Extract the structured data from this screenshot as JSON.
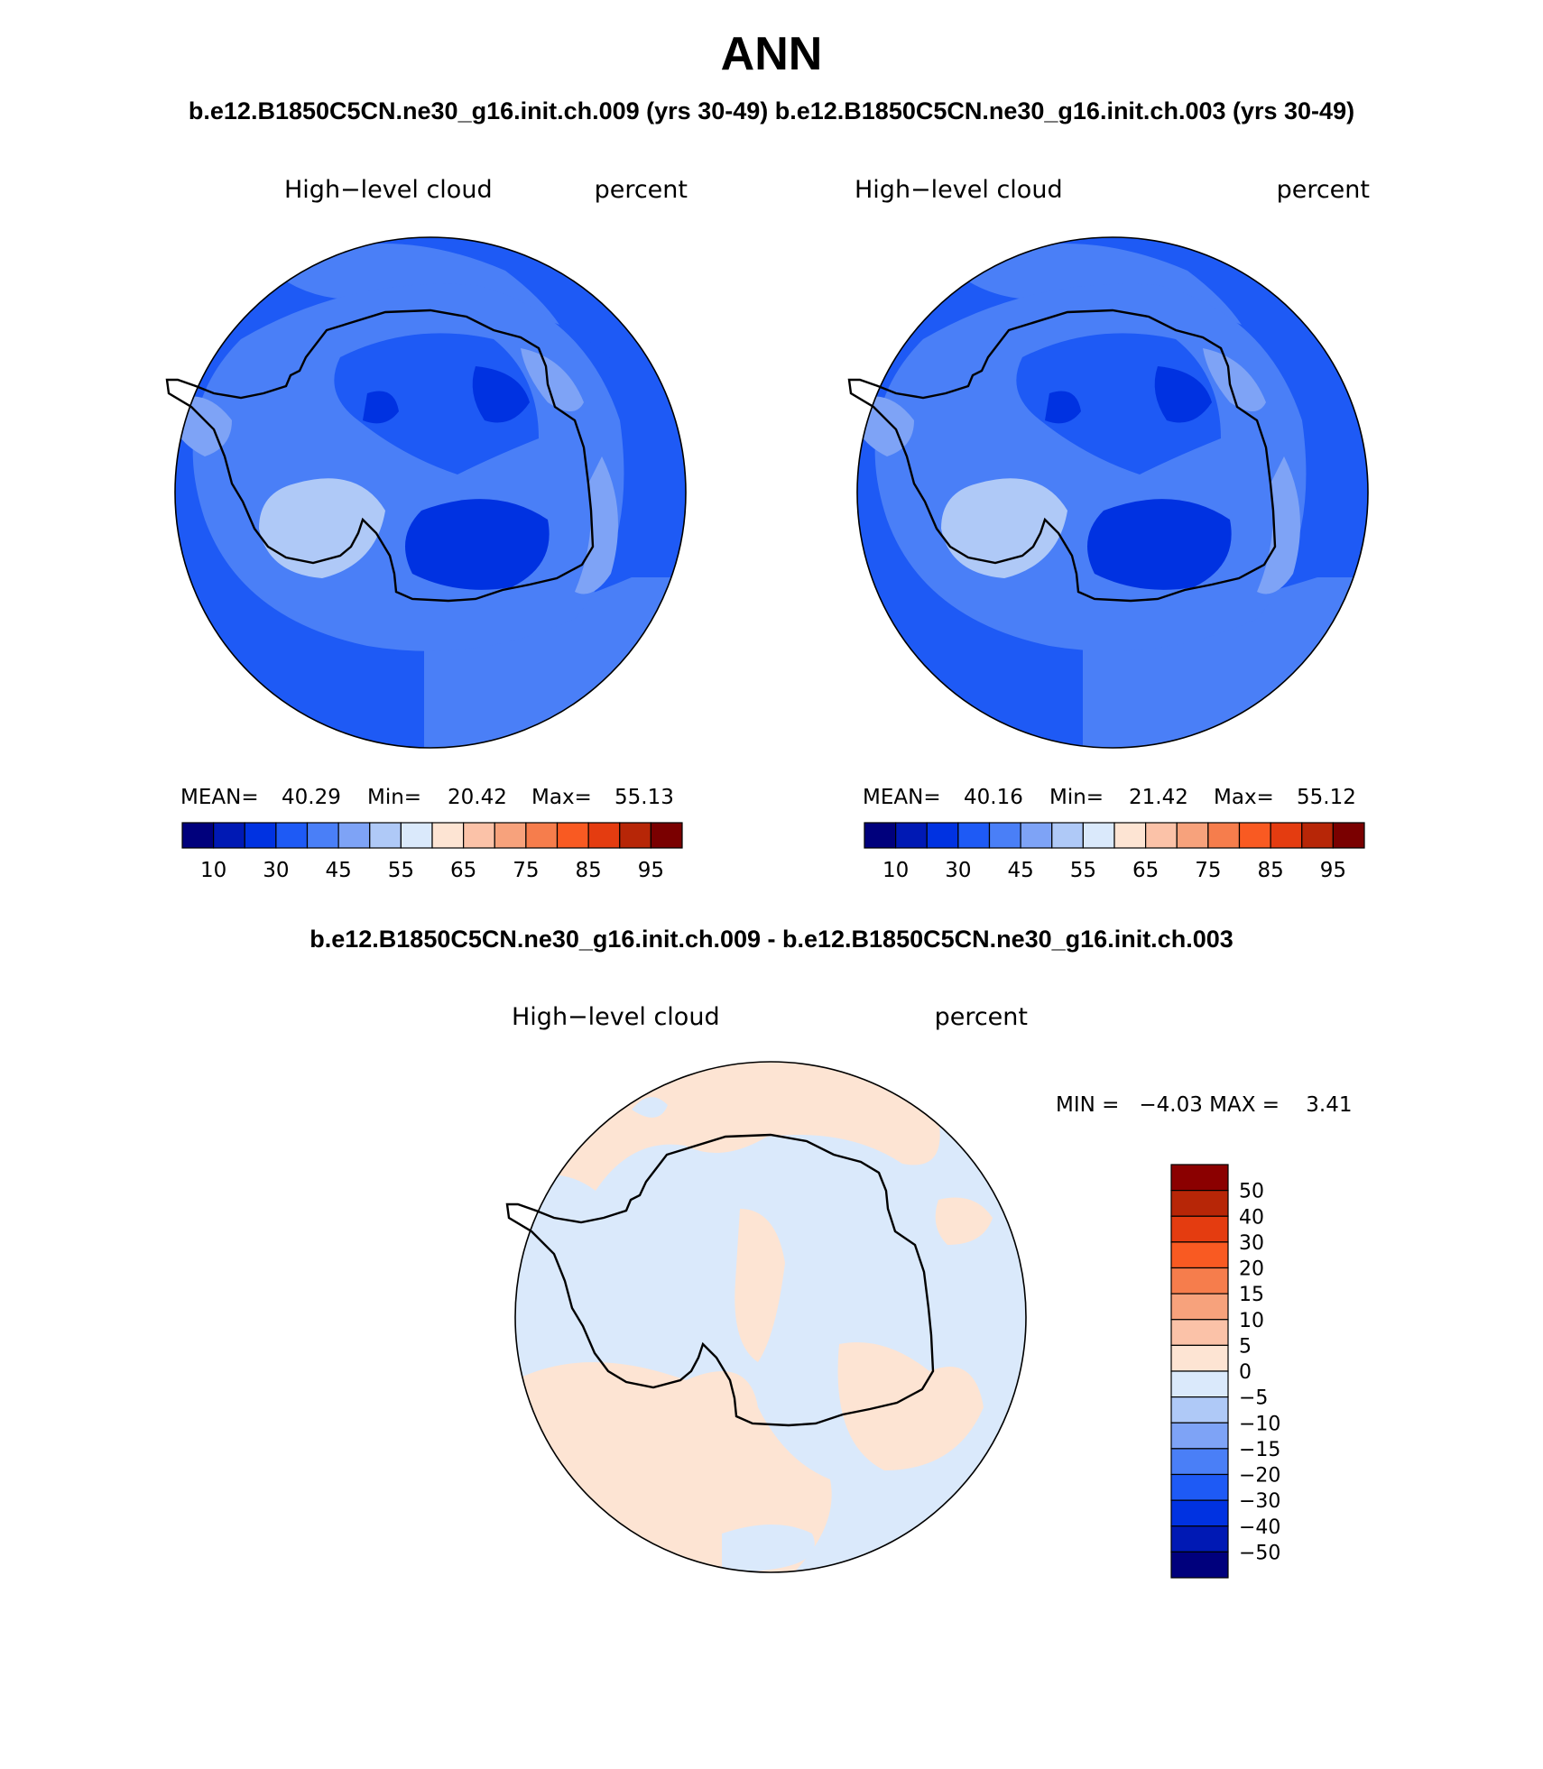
{
  "figure": {
    "title": "ANN",
    "case_titles": "b.e12.B1850C5CN.ne30_g16.init.ch.009 (yrs 30-49) b.e12.B1850C5CN.ne30_g16.init.ch.003 (yrs 30-49)",
    "diff_title": "b.e12.B1850C5CN.ne30_g16.init.ch.009 - b.e12.B1850C5CN.ne30_g16.init.ch.003"
  },
  "panels": [
    {
      "variable": "High−level cloud",
      "units": "percent",
      "stats": {
        "mean_label": "MEAN=",
        "mean": "40.29",
        "min_label": "Min=",
        "min": "20.42",
        "max_label": "Max=",
        "max": "55.13"
      }
    },
    {
      "variable": "High−level cloud",
      "units": "percent",
      "stats": {
        "mean_label": "MEAN=",
        "mean": "40.16",
        "min_label": "Min=",
        "min": "21.42",
        "max_label": "Max=",
        "max": "55.12"
      }
    }
  ],
  "diff_panel": {
    "variable": "High−level cloud",
    "units": "percent",
    "stats_text": "MIN =   −4.03 MAX =    3.41"
  },
  "colorbar_main": {
    "colors": [
      "#00007c",
      "#0019b4",
      "#0032e1",
      "#1e5af5",
      "#4a7ff7",
      "#7ea3f6",
      "#afc9f7",
      "#dae9fb",
      "#fde4d3",
      "#fbc2a8",
      "#f7a27c",
      "#f67d4c",
      "#f95a22",
      "#e43c10",
      "#b72607",
      "#7a0000"
    ],
    "tick_labels": [
      "10",
      "30",
      "45",
      "55",
      "65",
      "75",
      "85",
      "95"
    ]
  },
  "colorbar_diff": {
    "colors_top_to_bottom": [
      "#8b0000",
      "#b72607",
      "#e43c10",
      "#f95a22",
      "#f67d4c",
      "#f7a27c",
      "#fbc2a8",
      "#fde4d3",
      "#dae9fb",
      "#afc9f7",
      "#7ea3f6",
      "#4a7ff7",
      "#1e5af5",
      "#0032e1",
      "#0019b4",
      "#00007c"
    ],
    "tick_labels": [
      "50",
      "40",
      "30",
      "20",
      "15",
      "10",
      "5",
      "0",
      "−5",
      "−10",
      "−15",
      "−20",
      "−30",
      "−40",
      "−50"
    ]
  }
}
